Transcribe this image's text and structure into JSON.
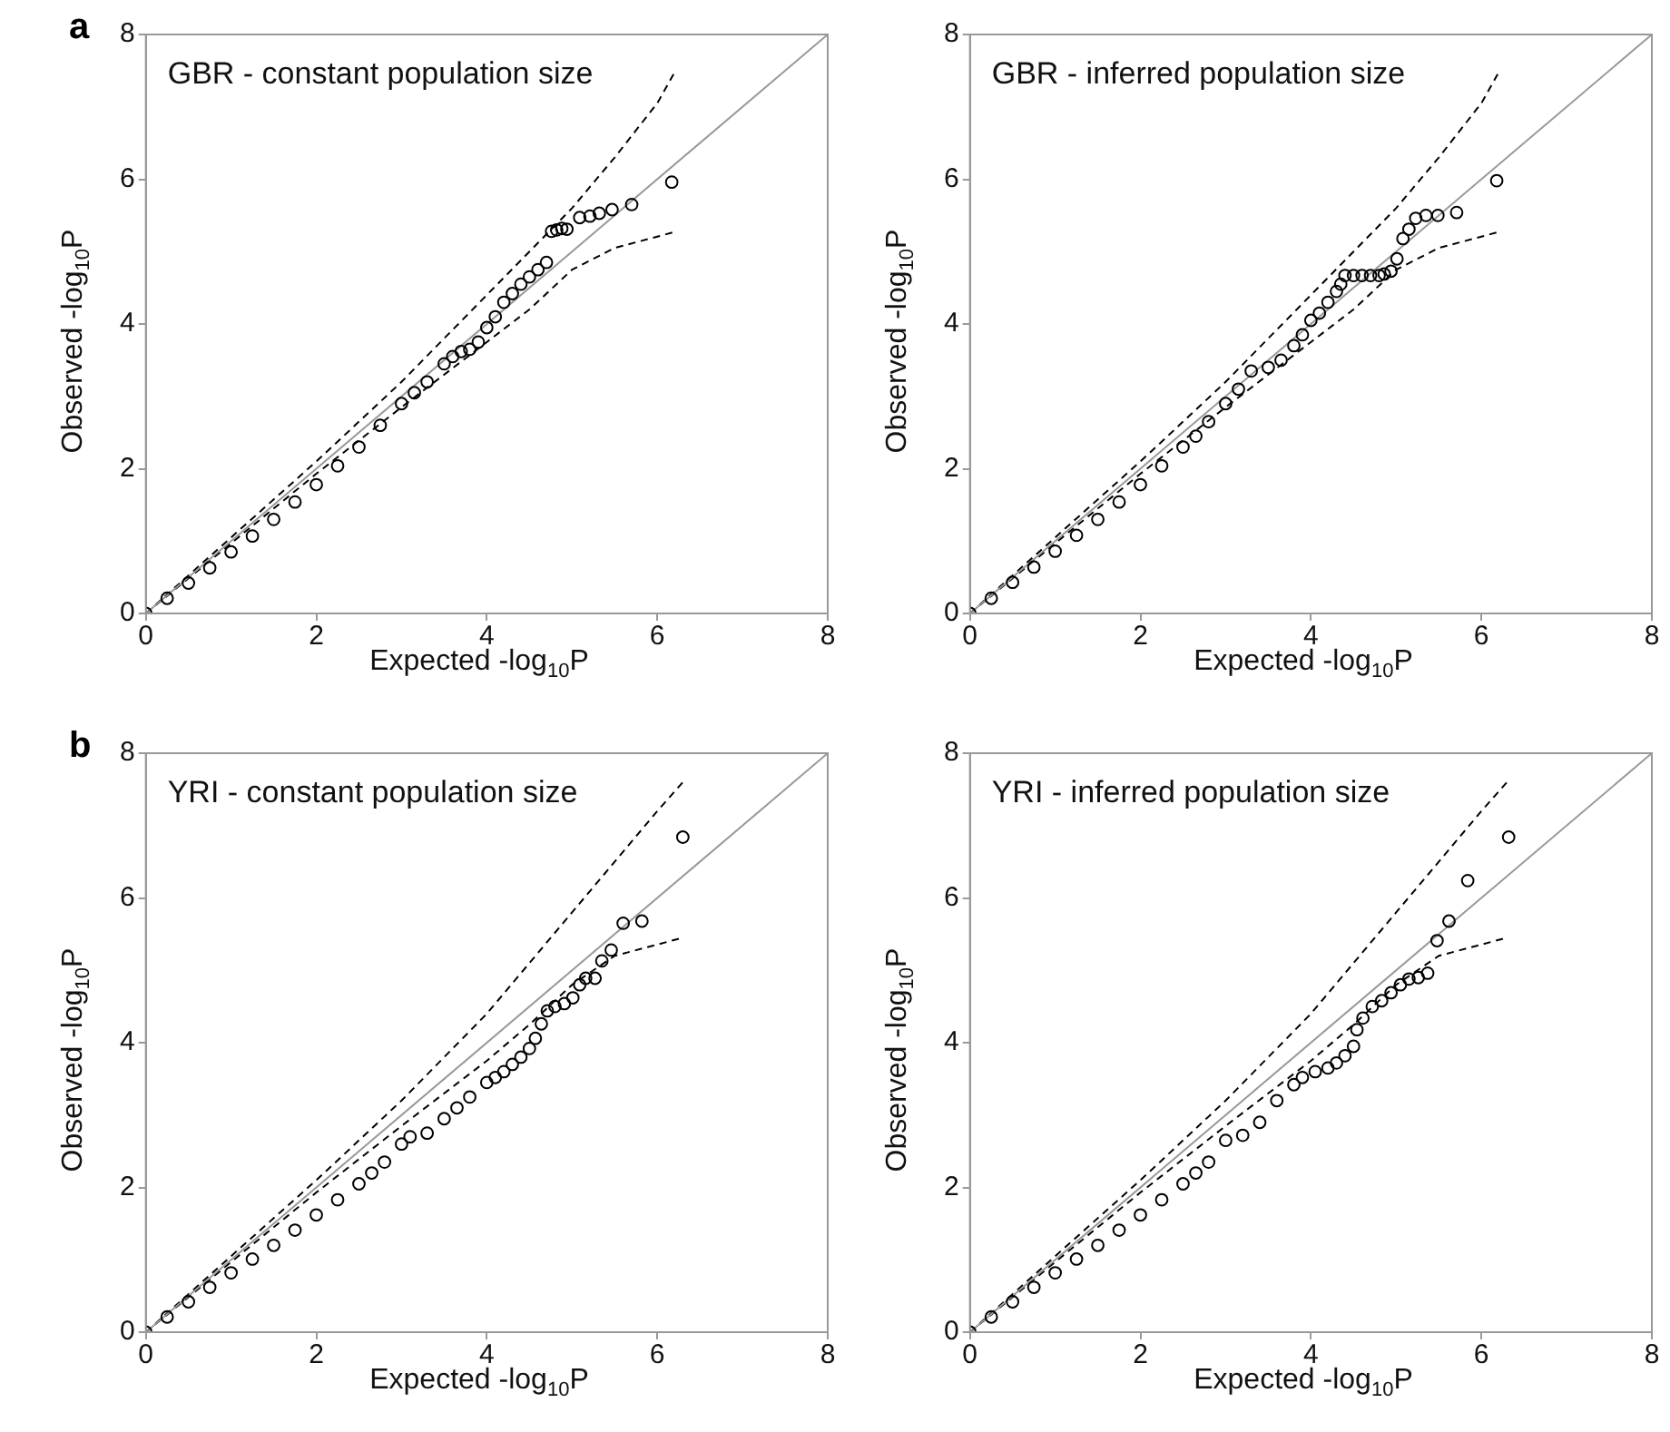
{
  "chart_data": [
    {
      "type": "scatter",
      "title": "GBR - constant population size",
      "xlabel": "Expected -log$_{10}$P",
      "ylabel": "Observed -log$_{10}$P",
      "annotations": [
        "a"
      ],
      "xlim": [
        0,
        8
      ],
      "ylim": [
        0,
        8
      ],
      "xticks": [
        0,
        2,
        4,
        6,
        8
      ],
      "yticks": [
        0,
        2,
        4,
        6,
        8
      ],
      "grid": false,
      "legend": false,
      "series": [
        {
          "type": "line",
          "color": "#999999",
          "marker": "none",
          "line_style": "solid",
          "x": [
            0,
            8
          ],
          "values": [
            0,
            8
          ]
        },
        {
          "type": "line",
          "color": "#000000",
          "marker": "none",
          "line_style": "dashed",
          "x": [
            0,
            1,
            2,
            3,
            4,
            5,
            5.5,
            6,
            6.2
          ],
          "values": [
            0,
            1.05,
            2.1,
            3.2,
            4.4,
            5.6,
            6.3,
            7.05,
            7.47
          ]
        },
        {
          "type": "line",
          "color": "#000000",
          "marker": "none",
          "line_style": "dashed",
          "x": [
            0,
            1,
            2,
            3,
            4,
            4.5,
            5,
            5.5,
            6.2
          ],
          "values": [
            0,
            0.97,
            1.93,
            2.85,
            3.75,
            4.2,
            4.75,
            5.05,
            5.27
          ]
        },
        {
          "type": "scatter",
          "color": "#000000",
          "marker": "circle",
          "x": [
            0,
            0.25,
            0.5,
            0.75,
            1,
            1.25,
            1.5,
            1.75,
            2,
            2.25,
            2.5,
            2.75,
            3,
            3.15,
            3.3,
            3.5,
            3.6,
            3.7,
            3.8,
            3.9,
            4,
            4.1,
            4.2,
            4.3,
            4.4,
            4.5,
            4.6,
            4.7,
            4.76,
            4.82,
            4.88,
            4.94,
            5.09,
            5.21,
            5.32,
            5.47,
            5.7,
            6.17
          ],
          "values": [
            0,
            0.21,
            0.42,
            0.63,
            0.85,
            1.07,
            1.3,
            1.54,
            1.78,
            2.04,
            2.3,
            2.6,
            2.9,
            3.05,
            3.2,
            3.45,
            3.55,
            3.62,
            3.65,
            3.75,
            3.95,
            4.1,
            4.3,
            4.42,
            4.55,
            4.65,
            4.75,
            4.85,
            5.28,
            5.3,
            5.32,
            5.31,
            5.47,
            5.49,
            5.53,
            5.58,
            5.65,
            5.96
          ]
        }
      ]
    },
    {
      "type": "scatter",
      "title": "GBR - inferred population size",
      "xlabel": "Expected -log$_{10}$P",
      "ylabel": "Observed -log$_{10}$P",
      "xlim": [
        0,
        8
      ],
      "ylim": [
        0,
        8
      ],
      "xticks": [
        0,
        2,
        4,
        6,
        8
      ],
      "yticks": [
        0,
        2,
        4,
        6,
        8
      ],
      "grid": false,
      "legend": false,
      "series": [
        {
          "type": "line",
          "color": "#999999",
          "marker": "none",
          "line_style": "solid",
          "x": [
            0,
            8
          ],
          "values": [
            0,
            8
          ]
        },
        {
          "type": "line",
          "color": "#000000",
          "marker": "none",
          "line_style": "dashed",
          "x": [
            0,
            1,
            2,
            3,
            4,
            5,
            5.5,
            6,
            6.2
          ],
          "values": [
            0,
            1.05,
            2.1,
            3.2,
            4.4,
            5.6,
            6.3,
            7.05,
            7.47
          ]
        },
        {
          "type": "line",
          "color": "#000000",
          "marker": "none",
          "line_style": "dashed",
          "x": [
            0,
            1,
            2,
            3,
            4,
            4.5,
            5,
            5.5,
            6.2
          ],
          "values": [
            0,
            0.97,
            1.93,
            2.85,
            3.75,
            4.2,
            4.75,
            5.05,
            5.27
          ]
        },
        {
          "type": "scatter",
          "color": "#000000",
          "marker": "circle",
          "x": [
            0,
            0.25,
            0.5,
            0.75,
            1,
            1.25,
            1.5,
            1.75,
            2,
            2.25,
            2.5,
            2.65,
            2.8,
            3,
            3.15,
            3.3,
            3.5,
            3.65,
            3.8,
            3.9,
            4,
            4.1,
            4.2,
            4.3,
            4.35,
            4.4,
            4.5,
            4.6,
            4.7,
            4.8,
            4.86,
            4.94,
            5.01,
            5.08,
            5.15,
            5.23,
            5.35,
            5.49,
            5.71,
            6.18
          ],
          "values": [
            0,
            0.21,
            0.43,
            0.64,
            0.86,
            1.08,
            1.3,
            1.54,
            1.78,
            2.04,
            2.3,
            2.45,
            2.65,
            2.9,
            3.1,
            3.35,
            3.4,
            3.5,
            3.7,
            3.85,
            4.05,
            4.15,
            4.3,
            4.45,
            4.55,
            4.67,
            4.67,
            4.67,
            4.67,
            4.67,
            4.69,
            4.73,
            4.9,
            5.18,
            5.31,
            5.46,
            5.5,
            5.5,
            5.54,
            5.98
          ]
        }
      ]
    },
    {
      "type": "scatter",
      "title": "YRI - constant population size",
      "xlabel": "Expected -log$_{10}$P",
      "ylabel": "Observed -log$_{10}$P",
      "annotations": [
        "b"
      ],
      "xlim": [
        0,
        8
      ],
      "ylim": [
        0,
        8
      ],
      "xticks": [
        0,
        2,
        4,
        6,
        8
      ],
      "yticks": [
        0,
        2,
        4,
        6,
        8
      ],
      "grid": false,
      "legend": false,
      "series": [
        {
          "type": "line",
          "color": "#999999",
          "marker": "none",
          "line_style": "solid",
          "x": [
            0,
            8
          ],
          "values": [
            0,
            8
          ]
        },
        {
          "type": "line",
          "color": "#000000",
          "marker": "none",
          "line_style": "dashed",
          "x": [
            0,
            1,
            2,
            3,
            4,
            5,
            5.5,
            6,
            6.3
          ],
          "values": [
            0,
            1.05,
            2.1,
            3.2,
            4.4,
            5.8,
            6.5,
            7.2,
            7.6
          ]
        },
        {
          "type": "line",
          "color": "#000000",
          "marker": "none",
          "line_style": "dashed",
          "x": [
            0,
            1,
            2,
            3,
            4,
            4.5,
            5,
            5.5,
            6.3
          ],
          "values": [
            0,
            0.97,
            1.93,
            2.85,
            3.75,
            4.25,
            4.8,
            5.2,
            5.45
          ]
        },
        {
          "type": "scatter",
          "color": "#000000",
          "marker": "circle",
          "x": [
            0,
            0.25,
            0.5,
            0.75,
            1,
            1.25,
            1.5,
            1.75,
            2,
            2.25,
            2.5,
            2.65,
            2.8,
            3,
            3.1,
            3.3,
            3.5,
            3.65,
            3.8,
            4,
            4.1,
            4.2,
            4.3,
            4.4,
            4.5,
            4.57,
            4.64,
            4.71,
            4.8,
            4.91,
            5.01,
            5.09,
            5.16,
            5.27,
            5.35,
            5.46,
            5.6,
            5.82,
            6.3
          ],
          "values": [
            0,
            0.21,
            0.42,
            0.62,
            0.82,
            1.01,
            1.2,
            1.41,
            1.62,
            1.83,
            2.05,
            2.2,
            2.35,
            2.6,
            2.7,
            2.75,
            2.95,
            3.1,
            3.25,
            3.45,
            3.52,
            3.6,
            3.7,
            3.8,
            3.92,
            4.06,
            4.26,
            4.44,
            4.5,
            4.54,
            4.62,
            4.8,
            4.89,
            4.89,
            5.13,
            5.28,
            5.65,
            5.68,
            6.84
          ]
        }
      ]
    },
    {
      "type": "scatter",
      "title": "YRI - inferred population size",
      "xlabel": "Expected -log$_{10}$P",
      "ylabel": "Observed -log$_{10}$P",
      "xlim": [
        0,
        8
      ],
      "ylim": [
        0,
        8
      ],
      "xticks": [
        0,
        2,
        4,
        6,
        8
      ],
      "yticks": [
        0,
        2,
        4,
        6,
        8
      ],
      "grid": false,
      "legend": false,
      "series": [
        {
          "type": "line",
          "color": "#999999",
          "marker": "none",
          "line_style": "solid",
          "x": [
            0,
            8
          ],
          "values": [
            0,
            8
          ]
        },
        {
          "type": "line",
          "color": "#000000",
          "marker": "none",
          "line_style": "dashed",
          "x": [
            0,
            1,
            2,
            3,
            4,
            5,
            5.5,
            6,
            6.3
          ],
          "values": [
            0,
            1.05,
            2.1,
            3.2,
            4.4,
            5.8,
            6.5,
            7.2,
            7.6
          ]
        },
        {
          "type": "line",
          "color": "#000000",
          "marker": "none",
          "line_style": "dashed",
          "x": [
            0,
            1,
            2,
            3,
            4,
            4.5,
            5,
            5.5,
            6.3
          ],
          "values": [
            0,
            0.97,
            1.93,
            2.85,
            3.75,
            4.25,
            4.8,
            5.2,
            5.45
          ]
        },
        {
          "type": "scatter",
          "color": "#000000",
          "marker": "circle",
          "x": [
            0,
            0.25,
            0.5,
            0.75,
            1,
            1.25,
            1.5,
            1.75,
            2,
            2.25,
            2.5,
            2.65,
            2.8,
            3,
            3.2,
            3.4,
            3.6,
            3.8,
            3.9,
            4.05,
            4.2,
            4.3,
            4.4,
            4.5,
            4.54,
            4.61,
            4.72,
            4.83,
            4.94,
            5.05,
            5.15,
            5.26,
            5.37,
            5.48,
            5.62,
            5.84,
            6.32
          ],
          "values": [
            0,
            0.21,
            0.42,
            0.62,
            0.82,
            1.01,
            1.2,
            1.41,
            1.62,
            1.83,
            2.05,
            2.2,
            2.35,
            2.65,
            2.72,
            2.9,
            3.2,
            3.42,
            3.52,
            3.6,
            3.65,
            3.72,
            3.82,
            3.95,
            4.18,
            4.34,
            4.5,
            4.58,
            4.69,
            4.8,
            4.88,
            4.9,
            4.96,
            5.41,
            5.68,
            6.24,
            6.84
          ]
        }
      ]
    }
  ]
}
